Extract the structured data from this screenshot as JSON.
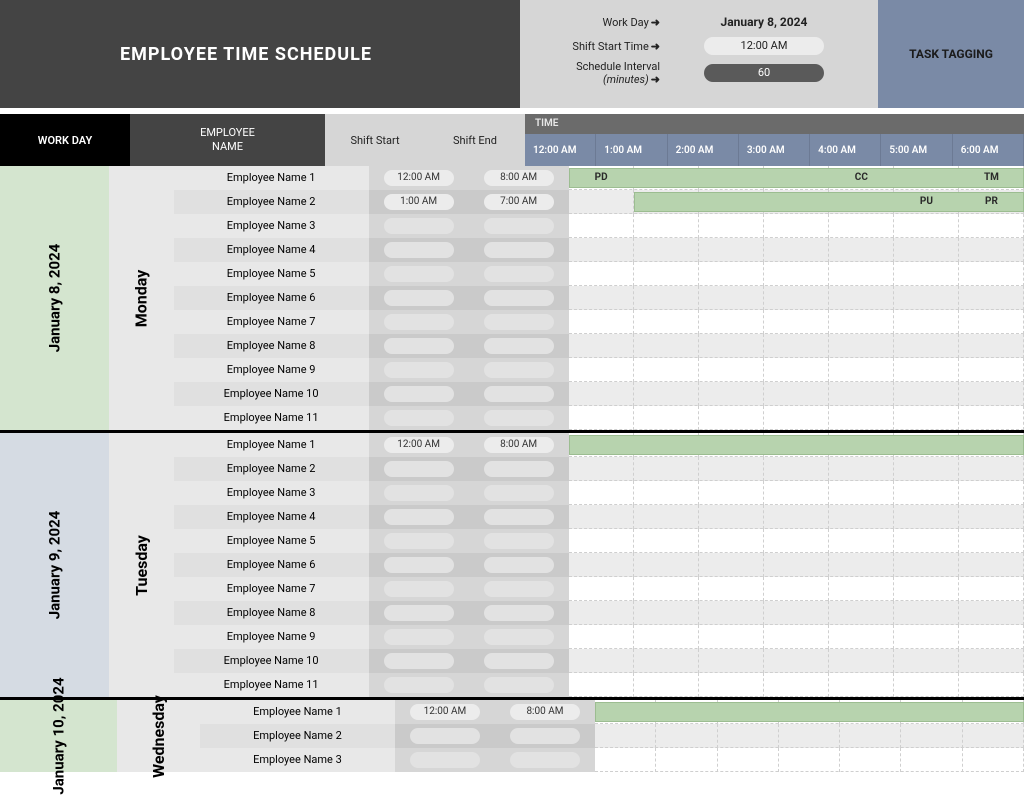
{
  "title": "EMPLOYEE TIME SCHEDULE",
  "settings": {
    "workday_label": "Work Day",
    "workday_value": "January 8, 2024",
    "shiftstart_label": "Shift Start Time",
    "shiftstart_value": "12:00 AM",
    "interval_label": "Schedule Interval",
    "interval_sub": "(minutes)",
    "interval_value": "60"
  },
  "task_tagging_label": "TASK TAGGING",
  "headers": {
    "workday": "WORK DAY",
    "employee": "EMPLOYEE\nNAME",
    "shift_start": "Shift Start",
    "shift_end": "Shift End",
    "time": "TIME"
  },
  "time_columns": [
    "12:00 AM",
    "1:00 AM",
    "2:00 AM",
    "3:00 AM",
    "4:00 AM",
    "5:00 AM",
    "6:00 AM"
  ],
  "colors": {
    "header_dark": "#444444",
    "header_black": "#000000",
    "settings_bg": "#d6d6d6",
    "task_bg": "#7a8aa6",
    "time_hdr_bg": "#6b6b6b",
    "timecol_bg": "#7a8aa6",
    "day_green": "#d4e5cf",
    "day_blue": "#d5dbe3",
    "shift_bar": "#b7d3ae",
    "grid_alt": "#ececec"
  },
  "days": [
    {
      "date": "January 8, 2024",
      "dayname": "Monday",
      "sidebar_color": "green",
      "rows": [
        {
          "name": "Employee Name 1",
          "start": "12:00 AM",
          "end": "8:00 AM",
          "bar_start_col": 0,
          "bar_span": 7,
          "tags": [
            {
              "label": "PD",
              "col": 0
            },
            {
              "label": "CC",
              "col": 4
            },
            {
              "label": "TM",
              "col": 6
            }
          ]
        },
        {
          "name": "Employee Name 2",
          "start": "1:00 AM",
          "end": "7:00 AM",
          "bar_start_col": 1,
          "bar_span": 6,
          "tags": [
            {
              "label": "PU",
              "col": 5
            },
            {
              "label": "PR",
              "col": 6
            }
          ]
        },
        {
          "name": "Employee Name 3"
        },
        {
          "name": "Employee Name 4"
        },
        {
          "name": "Employee Name 5"
        },
        {
          "name": "Employee Name 6"
        },
        {
          "name": "Employee Name 7"
        },
        {
          "name": "Employee Name 8"
        },
        {
          "name": "Employee Name 9"
        },
        {
          "name": "Employee Name 10"
        },
        {
          "name": "Employee Name 11"
        }
      ]
    },
    {
      "date": "January 9, 2024",
      "dayname": "Tuesday",
      "sidebar_color": "blue",
      "rows": [
        {
          "name": "Employee Name 1",
          "start": "12:00 AM",
          "end": "8:00 AM",
          "bar_start_col": 0,
          "bar_span": 7
        },
        {
          "name": "Employee Name 2"
        },
        {
          "name": "Employee Name 3"
        },
        {
          "name": "Employee Name 4"
        },
        {
          "name": "Employee Name 5"
        },
        {
          "name": "Employee Name 6"
        },
        {
          "name": "Employee Name 7"
        },
        {
          "name": "Employee Name 8"
        },
        {
          "name": "Employee Name 9"
        },
        {
          "name": "Employee Name 10"
        },
        {
          "name": "Employee Name 11"
        }
      ]
    },
    {
      "date": "January 10, 2024",
      "dayname": "Wednesday",
      "sidebar_color": "green",
      "rows": [
        {
          "name": "Employee Name 1",
          "start": "12:00 AM",
          "end": "8:00 AM",
          "bar_start_col": 0,
          "bar_span": 7
        },
        {
          "name": "Employee Name 2"
        },
        {
          "name": "Employee Name 3"
        }
      ]
    }
  ]
}
